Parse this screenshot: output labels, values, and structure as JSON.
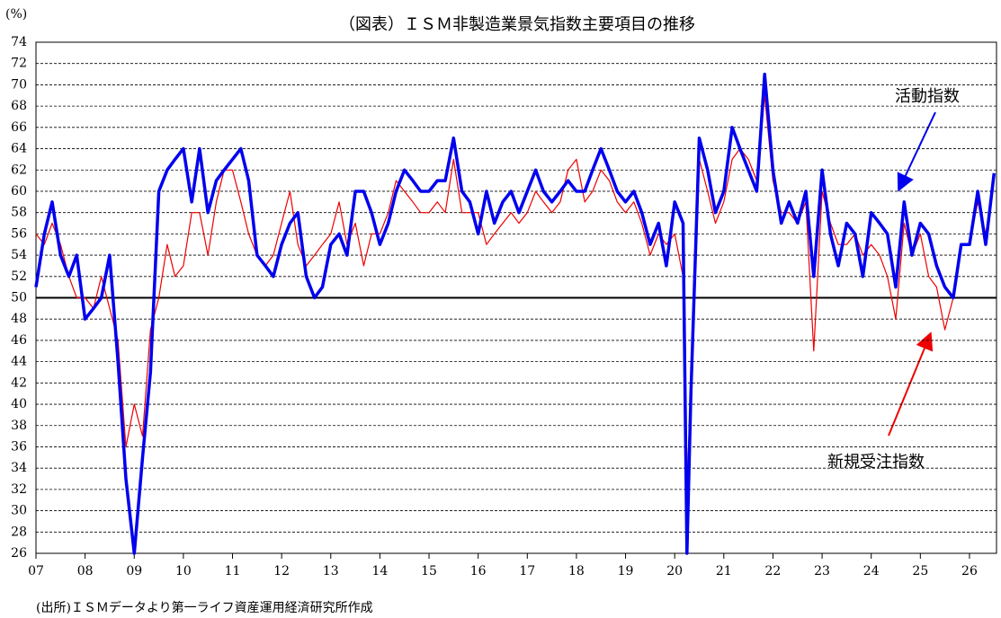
{
  "chart_data": {
    "type": "line",
    "title": "（図表）ＩＳＭ非製造業景気指数主要項目の推移",
    "y_unit": "(%)",
    "source": "(出所)ＩＳＭデータより第一ライフ資産運用経済研究所作成",
    "annotations": [
      "活動指数",
      "新規受注指数"
    ],
    "x": [
      2007,
      2007.17,
      2007.33,
      2007.5,
      2007.67,
      2007.83,
      2008,
      2008.17,
      2008.33,
      2008.5,
      2008.67,
      2008.83,
      2009,
      2009.17,
      2009.33,
      2009.5,
      2009.67,
      2009.83,
      2010,
      2010.17,
      2010.33,
      2010.5,
      2010.67,
      2010.83,
      2011,
      2011.17,
      2011.33,
      2011.5,
      2011.67,
      2011.83,
      2012,
      2012.17,
      2012.33,
      2012.5,
      2012.67,
      2012.83,
      2013,
      2013.17,
      2013.33,
      2013.5,
      2013.67,
      2013.83,
      2014,
      2014.17,
      2014.33,
      2014.5,
      2014.67,
      2014.83,
      2015,
      2015.17,
      2015.33,
      2015.5,
      2015.67,
      2015.83,
      2016,
      2016.17,
      2016.33,
      2016.5,
      2016.67,
      2016.83,
      2017,
      2017.17,
      2017.33,
      2017.5,
      2017.67,
      2017.83,
      2018,
      2018.17,
      2018.33,
      2018.5,
      2018.67,
      2018.83,
      2019,
      2019.17,
      2019.33,
      2019.5,
      2019.67,
      2019.83,
      2020,
      2020.17,
      2020.25,
      2020.33,
      2020.5,
      2020.67,
      2020.83,
      2021,
      2021.17,
      2021.33,
      2021.5,
      2021.67,
      2021.83,
      2022,
      2022.17,
      2022.33,
      2022.5,
      2022.67,
      2022.83,
      2023,
      2023.17,
      2023.33,
      2023.5,
      2023.67,
      2023.83,
      2024,
      2024.17,
      2024.33,
      2024.5,
      2024.67,
      2024.83,
      2025,
      2025.17,
      2025.33,
      2025.5,
      2025.67,
      2025.83,
      2026,
      2026.17,
      2026.33,
      2026.5
    ],
    "series": [
      {
        "name": "活動指数",
        "color": "#0000ee",
        "width": 3.5,
        "values": [
          51,
          56,
          59,
          54,
          52,
          54,
          48,
          49,
          50,
          54,
          44,
          33,
          26,
          35,
          43,
          60,
          62,
          63,
          64,
          59,
          64,
          58,
          61,
          62,
          63,
          64,
          61,
          54,
          53,
          52,
          55,
          57,
          58,
          52,
          50,
          51,
          55,
          56,
          54,
          60,
          60,
          58,
          55,
          57,
          60,
          62,
          61,
          60,
          60,
          61,
          61,
          65,
          60,
          59,
          56,
          60,
          57,
          59,
          60,
          58,
          60,
          62,
          60,
          59,
          60,
          61,
          60,
          60,
          62,
          64,
          62,
          60,
          59,
          60,
          58,
          55,
          57,
          53,
          59,
          57,
          26,
          41,
          65,
          62,
          58,
          60,
          66,
          64,
          62,
          60,
          71,
          62,
          57,
          59,
          57,
          60,
          52,
          62,
          56,
          53,
          57,
          56,
          52,
          58,
          57,
          56,
          51,
          59,
          54,
          57,
          56,
          53,
          51,
          50,
          55,
          55,
          60,
          55,
          61.7
        ]
      },
      {
        "name": "新規受注指数",
        "color": "#ee0000",
        "width": 1.2,
        "values": [
          56,
          55,
          57,
          55,
          52,
          50,
          50,
          49,
          52,
          49,
          46,
          36,
          40,
          37,
          47,
          50,
          55,
          52,
          53,
          58,
          58,
          54,
          59,
          62,
          62,
          59,
          56,
          54,
          53,
          54,
          57,
          60,
          55,
          53,
          54,
          55,
          56,
          59,
          55,
          57,
          53,
          56,
          56,
          58,
          61,
          60,
          59,
          58,
          58,
          59,
          58,
          63,
          58,
          58,
          58,
          55,
          56,
          57,
          58,
          57,
          58,
          60,
          59,
          58,
          59,
          62,
          63,
          59,
          60,
          62,
          61,
          59,
          58,
          59,
          57,
          54,
          56,
          55,
          56,
          52,
          32,
          42,
          63,
          60,
          57,
          59,
          63,
          64,
          63,
          61,
          69,
          61,
          58,
          58,
          57,
          59,
          45,
          60,
          57,
          55,
          55,
          56,
          54,
          55,
          54,
          52,
          48,
          57,
          54,
          56,
          52,
          51,
          47,
          50,
          55,
          55,
          59,
          56,
          61
        ]
      }
    ],
    "reference_line": 50,
    "xlim": [
      2007,
      2026.55
    ],
    "xticks": [
      {
        "value": 2007,
        "label": "07"
      },
      {
        "value": 2008,
        "label": "08"
      },
      {
        "value": 2009,
        "label": "09"
      },
      {
        "value": 2010,
        "label": "10"
      },
      {
        "value": 2011,
        "label": "11"
      },
      {
        "value": 2012,
        "label": "12"
      },
      {
        "value": 2013,
        "label": "13"
      },
      {
        "value": 2014,
        "label": "14"
      },
      {
        "value": 2015,
        "label": "15"
      },
      {
        "value": 2016,
        "label": "16"
      },
      {
        "value": 2017,
        "label": "17"
      },
      {
        "value": 2018,
        "label": "18"
      },
      {
        "value": 2019,
        "label": "19"
      },
      {
        "value": 2020,
        "label": "20"
      },
      {
        "value": 2021,
        "label": "21"
      },
      {
        "value": 2022,
        "label": "22"
      },
      {
        "value": 2023,
        "label": "23"
      },
      {
        "value": 2024,
        "label": "24"
      },
      {
        "value": 2025,
        "label": "25"
      },
      {
        "value": 2026,
        "label": "26"
      }
    ],
    "ylim": [
      26,
      74
    ],
    "yticks": [
      26,
      28,
      30,
      32,
      34,
      36,
      38,
      40,
      42,
      44,
      46,
      48,
      50,
      52,
      54,
      56,
      58,
      60,
      62,
      64,
      66,
      68,
      70,
      72,
      74
    ],
    "grid": true
  }
}
